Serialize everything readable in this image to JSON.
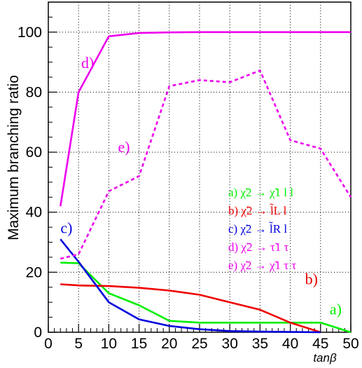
{
  "chart_data": {
    "type": "line",
    "title": "",
    "xlabel": "tanβ",
    "ylabel": "Maximum branching ratio",
    "xlim": [
      0,
      50
    ],
    "ylim": [
      0,
      110
    ],
    "grid": true,
    "legend_placement": "center-right",
    "x_ticks": [
      "0",
      "5",
      "10",
      "15",
      "20",
      "25",
      "30",
      "35",
      "40",
      "45",
      "50"
    ],
    "y_ticks": [
      "0",
      "20",
      "40",
      "60",
      "80",
      "100"
    ],
    "series": [
      {
        "id": "a",
        "name": "a) χ̃2 → χ̃1 l l",
        "marker": "a)",
        "color": "#00ee00",
        "style": "solid",
        "x": [
          2,
          5,
          10,
          15,
          20,
          25,
          30,
          35,
          40,
          45,
          50
        ],
        "y": [
          23.2,
          23,
          13,
          9,
          3.8,
          3.2,
          3.2,
          3.2,
          3.2,
          3.2,
          0
        ]
      },
      {
        "id": "b",
        "name": "b) χ̃2 → l̃L l",
        "marker": "b)",
        "color": "#ee0000",
        "style": "solid",
        "x": [
          2,
          5,
          10,
          15,
          20,
          25,
          30,
          35,
          40,
          45
        ],
        "y": [
          16,
          15.6,
          15.4,
          14.8,
          13.9,
          12.5,
          10,
          7.5,
          3.2,
          0
        ]
      },
      {
        "id": "c",
        "name": "c) χ̃2 → l̃R l",
        "marker": "c)",
        "color": "#0000dd",
        "style": "solid",
        "x": [
          2,
          5,
          10,
          15,
          20,
          25,
          30,
          35,
          40,
          45
        ],
        "y": [
          31,
          23.5,
          10,
          4.3,
          2.1,
          1,
          0.4,
          0.2,
          0.1,
          0
        ]
      },
      {
        "id": "d",
        "name": "d) χ̃2 → τ̃1 τ",
        "marker": "d)",
        "color": "#ee00ee",
        "style": "solid",
        "x": [
          2,
          5,
          10,
          15,
          20,
          25,
          30,
          35,
          40,
          45,
          50
        ],
        "y": [
          42,
          80,
          98.6,
          99.7,
          99.9,
          100,
          100,
          100,
          100,
          100,
          100
        ]
      },
      {
        "id": "e",
        "name": "e) χ̃2 → χ̃1 τ τ",
        "marker": "e)",
        "color": "#ee00ee",
        "style": "dashed",
        "x": [
          2,
          5,
          10,
          15,
          20,
          25,
          30,
          35,
          40,
          45,
          50
        ],
        "y": [
          24.5,
          26,
          47,
          52,
          82,
          84,
          83.3,
          87.2,
          64,
          61.2,
          45
        ]
      }
    ]
  }
}
